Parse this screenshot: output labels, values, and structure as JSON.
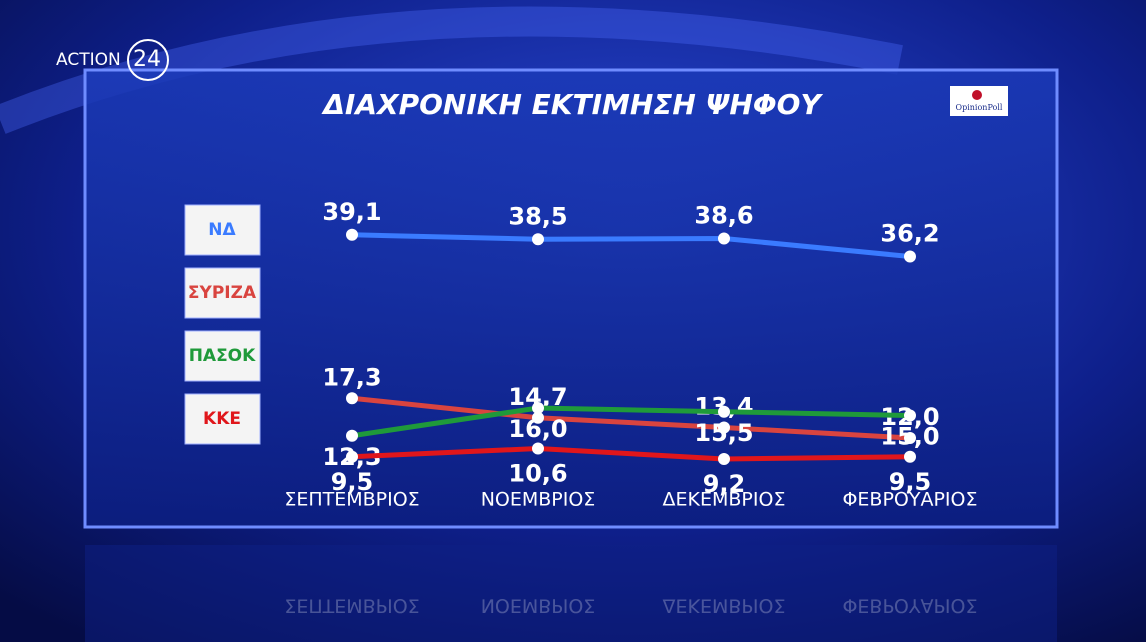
{
  "channel_logo": {
    "name": "ACTION",
    "number": "24"
  },
  "pollster": "OpinionPoll",
  "chart_data": {
    "type": "line",
    "title": "ΔΙΑΧΡΟΝΙΚΗ  ΕΚΤΙΜΗΣΗ  ΨΗΦΟΥ",
    "categories": [
      "ΣΕΠΤΕΜΒΡΙΟΣ",
      "ΝΟΕΜΒΡΙΟΣ",
      "ΔΕΚΕΜΒΡΙΟΣ",
      "ΦΕΒΡΟΥΑΡΙΟΣ"
    ],
    "ylim": [
      8,
      40
    ],
    "series": [
      {
        "name": "ΝΔ",
        "color": "#3a7bff",
        "values": [
          39.1,
          38.5,
          38.6,
          36.2
        ],
        "value_labels": [
          "39,1",
          "38,5",
          "38,6",
          "36,2"
        ]
      },
      {
        "name": "ΣΥΡΙΖΑ",
        "color": "#d9443f",
        "values": [
          17.3,
          14.7,
          13.4,
          12.0
        ],
        "value_labels": [
          "17,3",
          "14,7",
          "13,4",
          "12,0"
        ]
      },
      {
        "name": "ΠΑΣΟΚ",
        "color": "#1f9a3a",
        "values": [
          12.3,
          16.0,
          15.5,
          15.0
        ],
        "value_labels": [
          "12,3",
          "16,0",
          "15,5",
          "15,0"
        ]
      },
      {
        "name": "ΚΚΕ",
        "color": "#e0161b",
        "values": [
          9.5,
          10.6,
          9.2,
          9.5
        ],
        "value_labels": [
          "9,5",
          "10,6",
          "9,2",
          "9,5"
        ]
      }
    ]
  }
}
